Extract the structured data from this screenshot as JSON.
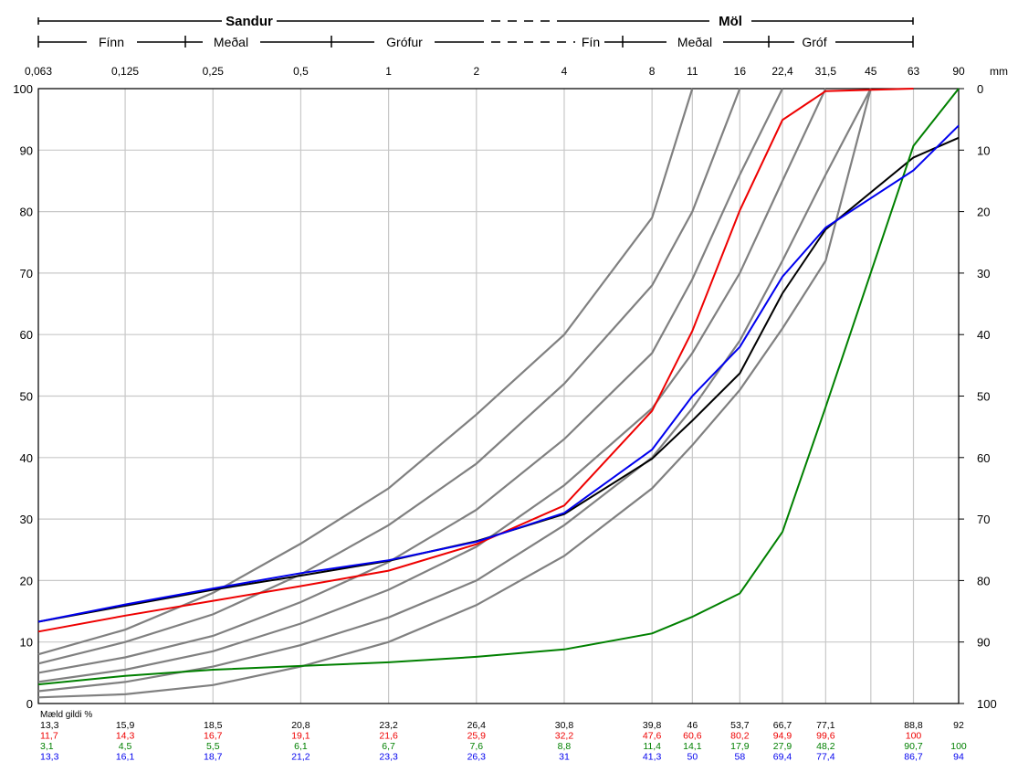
{
  "header": {
    "row1": {
      "left": "Sandur",
      "right": "Möl"
    },
    "row2": {
      "labels": [
        "Fínn",
        "Meðal",
        "Grófur",
        "Fín",
        "Meðal",
        "Gróf"
      ]
    }
  },
  "chart_data": {
    "type": "line",
    "title": "",
    "x_scale": "log",
    "x_unit": "mm",
    "xlabel": "",
    "ylabel": "",
    "ylim": [
      0,
      100
    ],
    "y_ticks_left": [
      "0",
      "10",
      "20",
      "30",
      "40",
      "50",
      "60",
      "70",
      "80",
      "90",
      "100"
    ],
    "y_ticks_right": [
      "100",
      "90",
      "80",
      "70",
      "60",
      "50",
      "40",
      "30",
      "20",
      "10",
      "0"
    ],
    "sieve_labels": [
      "0,063",
      "0,125",
      "0,25",
      "0,5",
      "1",
      "2",
      "4",
      "8",
      "11",
      "16",
      "22,4",
      "31,5",
      "45",
      "63",
      "90"
    ],
    "x": [
      0.063,
      0.125,
      0.25,
      0.5,
      1,
      2,
      4,
      8,
      11,
      16,
      22.4,
      31.5,
      45,
      63,
      90
    ],
    "grid": true,
    "table_caption": "Mæld gildi %",
    "series": [
      {
        "color": "#000000",
        "values": [
          13.3,
          15.9,
          18.5,
          20.8,
          23.2,
          26.4,
          30.8,
          39.8,
          46,
          53.7,
          66.7,
          77.1,
          null,
          88.8,
          92
        ],
        "labels": [
          "13,3",
          "15,9",
          "18,5",
          "20,8",
          "23,2",
          "26,4",
          "30,8",
          "39,8",
          "46",
          "53,7",
          "66,7",
          "77,1",
          "",
          "88,8",
          "92"
        ]
      },
      {
        "color": "#ee0000",
        "values": [
          11.7,
          14.3,
          16.7,
          19.1,
          21.6,
          25.9,
          32.2,
          47.6,
          60.6,
          80.2,
          94.9,
          99.6,
          null,
          100,
          null
        ],
        "labels": [
          "11,7",
          "14,3",
          "16,7",
          "19,1",
          "21,6",
          "25,9",
          "32,2",
          "47,6",
          "60,6",
          "80,2",
          "94,9",
          "99,6",
          "",
          "100",
          ""
        ]
      },
      {
        "color": "#008000",
        "values": [
          3.1,
          4.5,
          5.5,
          6.1,
          6.7,
          7.6,
          8.8,
          11.4,
          14.1,
          17.9,
          27.9,
          48.2,
          null,
          90.7,
          100
        ],
        "labels": [
          "3,1",
          "4,5",
          "5,5",
          "6,1",
          "6,7",
          "7,6",
          "8,8",
          "11,4",
          "14,1",
          "17,9",
          "27,9",
          "48,2",
          "",
          "90,7",
          "100"
        ]
      },
      {
        "color": "#0000ee",
        "values": [
          13.3,
          16.1,
          18.7,
          21.2,
          23.3,
          26.3,
          31,
          41.3,
          50,
          58,
          69.4,
          77.4,
          null,
          86.7,
          94
        ],
        "labels": [
          "13,3",
          "16,1",
          "18,7",
          "21,2",
          "23,3",
          "26,3",
          "31",
          "41,3",
          "50",
          "58",
          "69,4",
          "77,4",
          "",
          "86,7",
          "94"
        ]
      }
    ],
    "reference_curves": {
      "color": "#808080",
      "curves": [
        {
          "x": [
            0.063,
            0.125,
            0.25,
            0.5,
            1,
            2,
            4,
            8,
            11
          ],
          "values": [
            8,
            12,
            18,
            26,
            35,
            47,
            60,
            79,
            100
          ]
        },
        {
          "x": [
            0.063,
            0.125,
            0.25,
            0.5,
            1,
            2,
            4,
            8,
            11,
            16
          ],
          "values": [
            6.5,
            10,
            14.5,
            21,
            29,
            39,
            52,
            68,
            80,
            100
          ]
        },
        {
          "x": [
            0.063,
            0.125,
            0.25,
            0.5,
            1,
            2,
            4,
            8,
            11,
            16,
            22.4
          ],
          "values": [
            5,
            7.5,
            11,
            16.5,
            23,
            31.5,
            43,
            57,
            69,
            86,
            100
          ]
        },
        {
          "x": [
            0.063,
            0.125,
            0.25,
            0.5,
            1,
            2,
            4,
            8,
            11,
            16,
            22.4,
            31.5
          ],
          "values": [
            3.5,
            5.5,
            8.5,
            13,
            18.5,
            25.5,
            35.5,
            48,
            57,
            70,
            85,
            100
          ]
        },
        {
          "x": [
            0.063,
            0.125,
            0.25,
            0.5,
            1,
            2,
            4,
            8,
            11,
            16,
            22.4,
            31.5,
            45
          ],
          "values": [
            2,
            3.5,
            6,
            9.5,
            14,
            20,
            29,
            40,
            48,
            59,
            72,
            86,
            100
          ]
        },
        {
          "x": [
            0.063,
            0.125,
            0.25,
            0.5,
            1,
            2,
            4,
            8,
            11,
            16,
            22.4,
            31.5,
            45
          ],
          "values": [
            1,
            1.5,
            3,
            6,
            10,
            16,
            24,
            35,
            42,
            51,
            61,
            72,
            100
          ]
        }
      ]
    }
  }
}
